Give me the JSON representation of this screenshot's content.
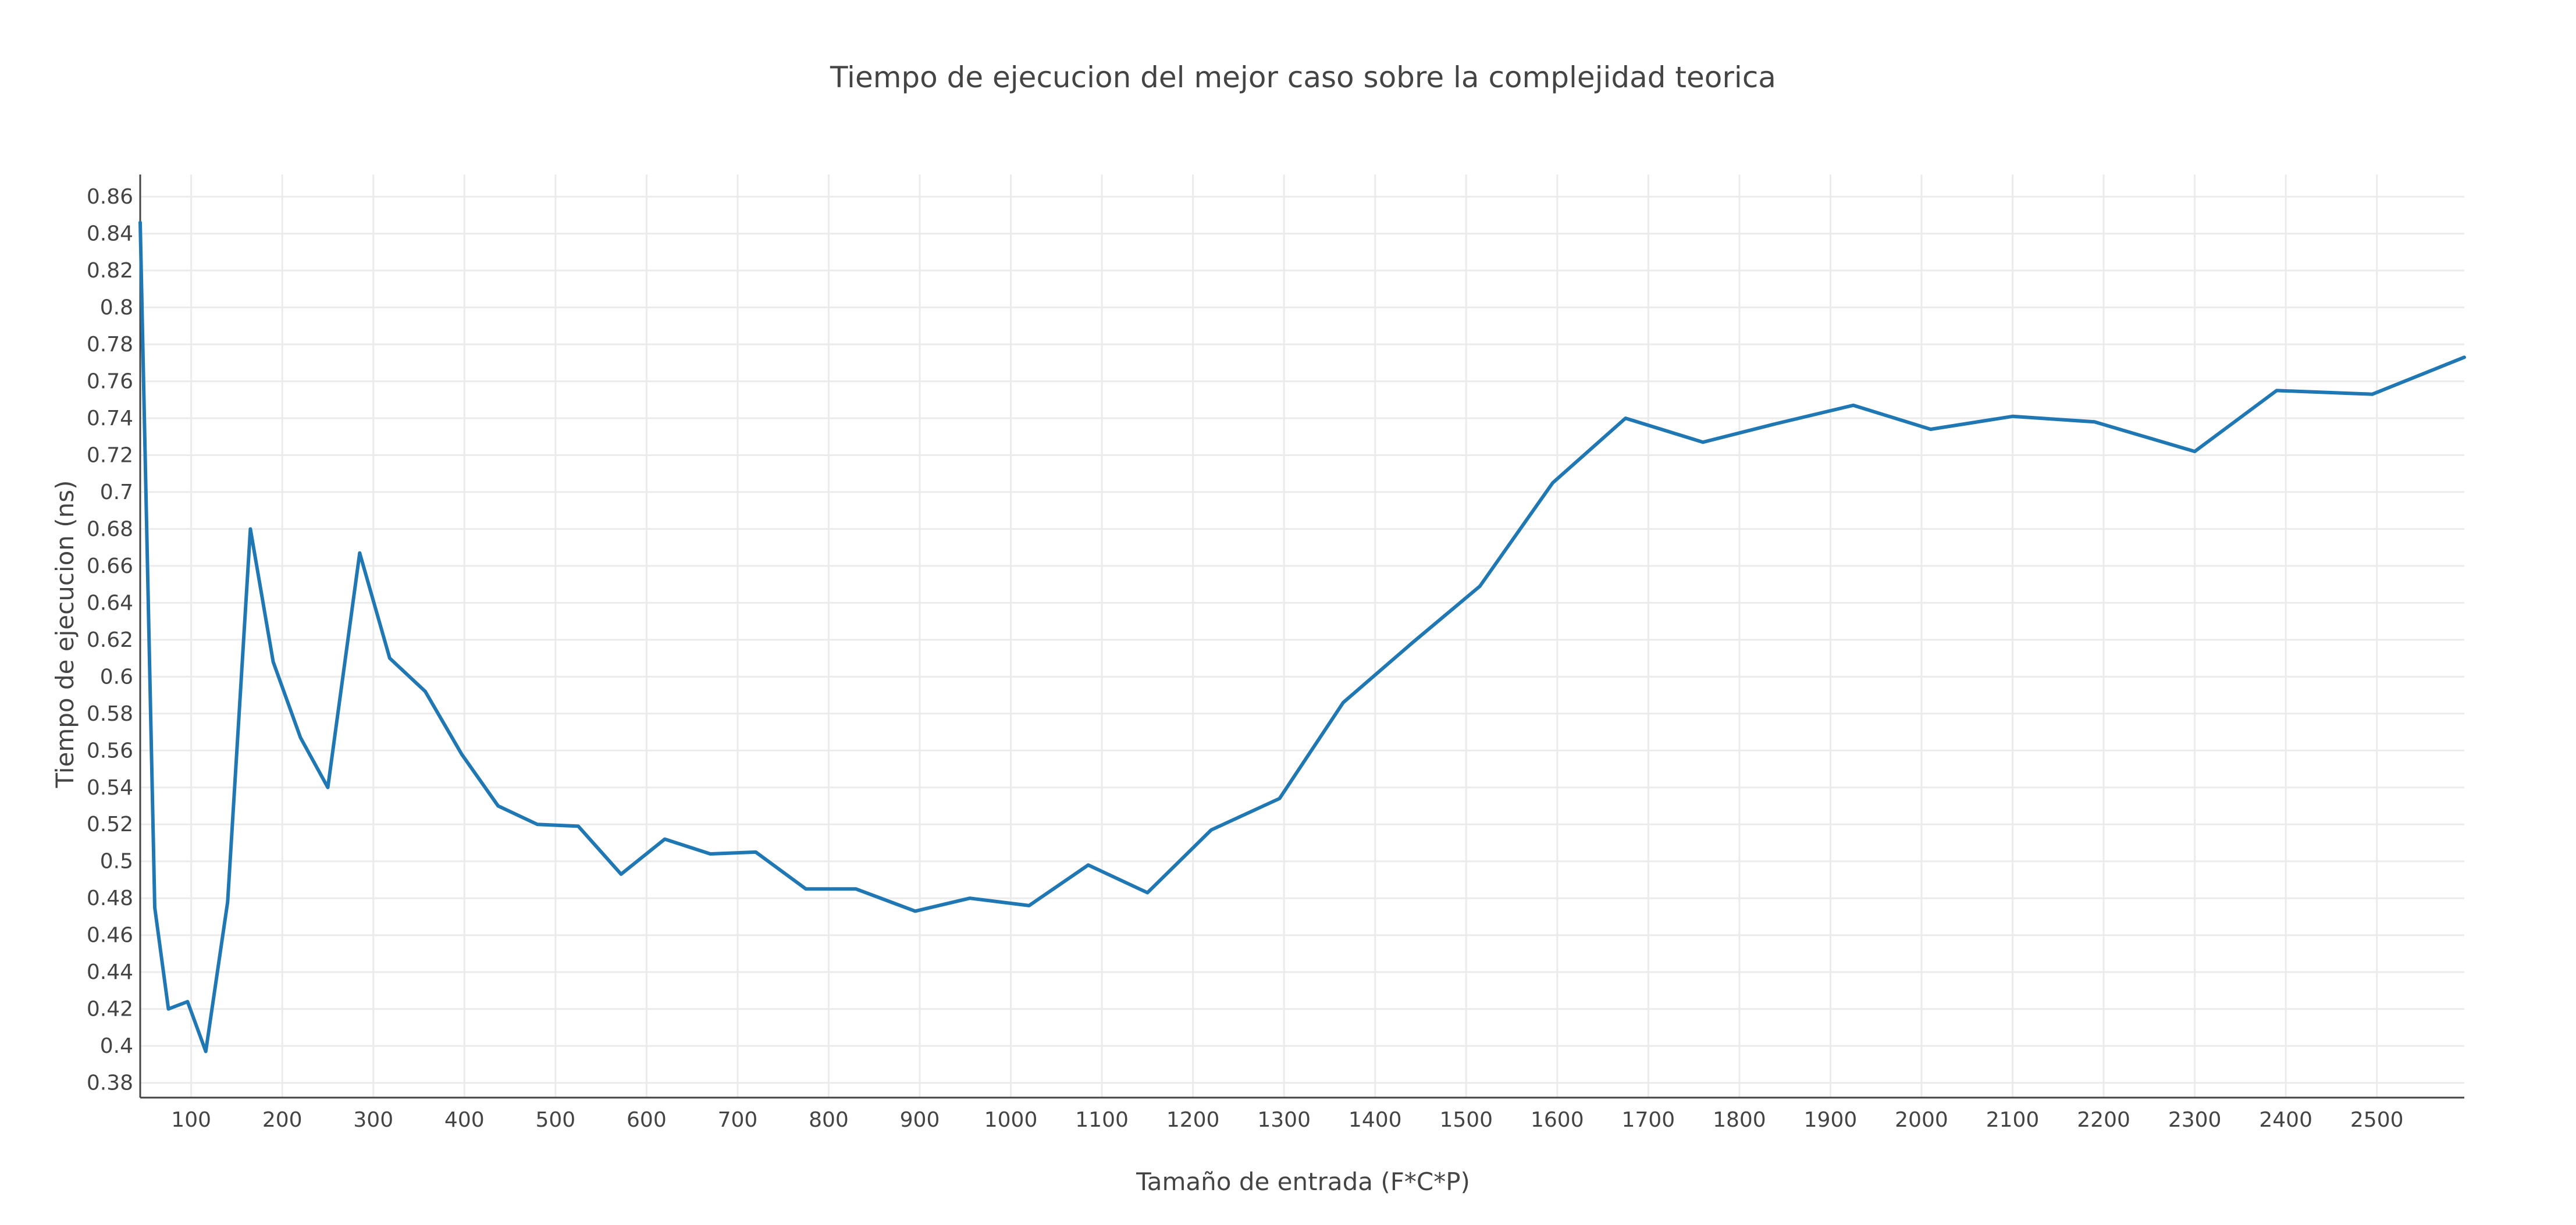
{
  "chart_data": {
    "type": "line",
    "title": "Tiempo de ejecucion del mejor caso sobre la complejidad teorica",
    "xlabel": "Tamaño de entrada (F*C*P)",
    "ylabel": "Tiempo de ejecucion (ns)",
    "xlim": [
      44,
      2596
    ],
    "ylim": [
      0.372,
      0.872
    ],
    "x_ticks": [
      100,
      200,
      300,
      400,
      500,
      600,
      700,
      800,
      900,
      1000,
      1100,
      1200,
      1300,
      1400,
      1500,
      1600,
      1700,
      1800,
      1900,
      2000,
      2100,
      2200,
      2300,
      2400,
      2500
    ],
    "y_ticks": [
      0.38,
      0.4,
      0.42,
      0.44,
      0.46,
      0.48,
      0.5,
      0.52,
      0.54,
      0.56,
      0.58,
      0.6,
      0.62,
      0.64,
      0.66,
      0.68,
      0.7,
      0.72,
      0.74,
      0.76,
      0.78,
      0.8,
      0.82,
      0.84,
      0.86
    ],
    "grid": true,
    "legend": "none",
    "series": [
      {
        "color": "#1f77b4",
        "x": [
          44,
          60,
          75,
          96,
          116,
          140,
          165,
          190,
          220,
          250,
          285,
          318,
          357,
          397,
          437,
          480,
          525,
          572,
          620,
          670,
          720,
          775,
          830,
          895,
          955,
          1020,
          1085,
          1150,
          1220,
          1295,
          1365,
          1440,
          1515,
          1595,
          1675,
          1760,
          1840,
          1925,
          2010,
          2100,
          2190,
          2300,
          2390,
          2495,
          2596
        ],
        "y": [
          0.846,
          0.475,
          0.42,
          0.424,
          0.397,
          0.478,
          0.68,
          0.608,
          0.567,
          0.54,
          0.667,
          0.61,
          0.592,
          0.558,
          0.53,
          0.52,
          0.519,
          0.493,
          0.512,
          0.504,
          0.505,
          0.485,
          0.485,
          0.473,
          0.48,
          0.476,
          0.498,
          0.483,
          0.517,
          0.534,
          0.586,
          0.618,
          0.649,
          0.705,
          0.74,
          0.727,
          0.737,
          0.747,
          0.734,
          0.741,
          0.738,
          0.722,
          0.755,
          0.753,
          0.773
        ]
      }
    ]
  }
}
